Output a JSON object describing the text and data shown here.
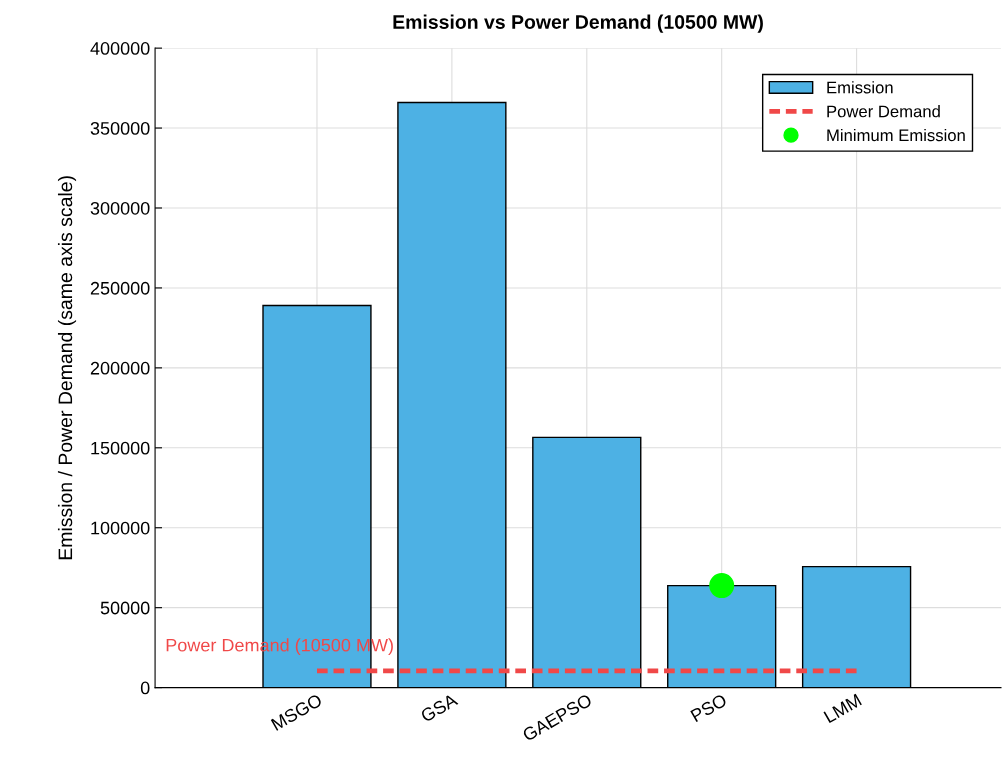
{
  "chart_data": {
    "type": "bar",
    "title": "Emission vs Power Demand (10500 MW)",
    "ylabel": "Emission / Power Demand (same axis scale)",
    "categories": [
      "MSGO",
      "GSA",
      "GAEPSO",
      "PSO",
      "LMM"
    ],
    "series": [
      {
        "name": "Emission",
        "color": "#4db1e4",
        "values": [
          239000,
          366000,
          156500,
          63800,
          75700
        ]
      },
      {
        "name": "Power Demand",
        "type": "line",
        "color": "#f04848",
        "line_style": "dashed",
        "values": [
          10500,
          10500,
          10500,
          10500,
          10500
        ]
      },
      {
        "name": "Minimum Emission",
        "type": "scatter",
        "color": "#00ff00",
        "marker": "circle",
        "x": [
          "PSO"
        ],
        "values": [
          63800
        ]
      }
    ],
    "annotations": [
      "Power Demand (10500 MW)"
    ],
    "ylim": [
      0,
      400000
    ],
    "yticks": [
      0,
      50000,
      100000,
      150000,
      200000,
      250000,
      300000,
      350000,
      400000
    ],
    "grid": true,
    "legend": "top right"
  }
}
